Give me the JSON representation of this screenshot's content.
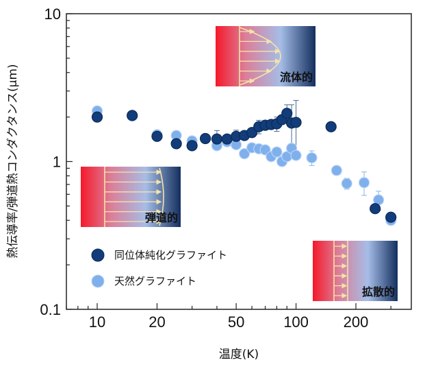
{
  "chart_data": {
    "type": "scatter",
    "xlabel": "温度(K)",
    "ylabel": "熱伝導率/弾道熱コンダクタンス(μm)",
    "xscale": "log",
    "yscale": "log",
    "xlim": [
      7,
      380
    ],
    "ylim": [
      0.1,
      10
    ],
    "xticks": [
      10,
      20,
      50,
      100,
      200
    ],
    "yticks": [
      0.1,
      1,
      10
    ],
    "xtick_labels": [
      "10",
      "20",
      "50",
      "100",
      "200"
    ],
    "ytick_labels": [
      "0.1",
      "1",
      "10"
    ],
    "legend_position": "lower-left",
    "series": [
      {
        "name": "同位体純化グラファイト",
        "color": "#123d7a",
        "points": [
          {
            "x": 10,
            "y": 2.0
          },
          {
            "x": 15,
            "y": 2.05
          },
          {
            "x": 20,
            "y": 1.48
          },
          {
            "x": 25,
            "y": 1.32
          },
          {
            "x": 30,
            "y": 1.28
          },
          {
            "x": 35,
            "y": 1.43
          },
          {
            "x": 40,
            "y": 1.42,
            "err": 0.2
          },
          {
            "x": 45,
            "y": 1.42
          },
          {
            "x": 50,
            "y": 1.48,
            "err": 0.15
          },
          {
            "x": 55,
            "y": 1.5
          },
          {
            "x": 60,
            "y": 1.57
          },
          {
            "x": 65,
            "y": 1.72,
            "err": 0.18
          },
          {
            "x": 70,
            "y": 1.76
          },
          {
            "x": 75,
            "y": 1.78
          },
          {
            "x": 80,
            "y": 1.8,
            "err": 0.2
          },
          {
            "x": 85,
            "y": 1.92
          },
          {
            "x": 90,
            "y": 2.12,
            "err": 0.3
          },
          {
            "x": 95,
            "y": 1.82,
            "err": 0.6
          },
          {
            "x": 100,
            "y": 1.84,
            "err": 0.75
          },
          {
            "x": 150,
            "y": 1.72
          },
          {
            "x": 250,
            "y": 0.48
          },
          {
            "x": 300,
            "y": 0.42
          }
        ]
      },
      {
        "name": "天然グラファイト",
        "color": "#7fb0ec",
        "points": [
          {
            "x": 10,
            "y": 2.2
          },
          {
            "x": 15,
            "y": 2.03
          },
          {
            "x": 20,
            "y": 1.52
          },
          {
            "x": 25,
            "y": 1.5
          },
          {
            "x": 30,
            "y": 1.38
          },
          {
            "x": 40,
            "y": 1.28
          },
          {
            "x": 45,
            "y": 1.36
          },
          {
            "x": 50,
            "y": 1.3
          },
          {
            "x": 55,
            "y": 1.13
          },
          {
            "x": 60,
            "y": 1.24
          },
          {
            "x": 65,
            "y": 1.22
          },
          {
            "x": 70,
            "y": 1.2
          },
          {
            "x": 75,
            "y": 1.08
          },
          {
            "x": 80,
            "y": 1.16
          },
          {
            "x": 85,
            "y": 1.0
          },
          {
            "x": 90,
            "y": 1.08
          },
          {
            "x": 95,
            "y": 1.23
          },
          {
            "x": 100,
            "y": 1.1
          },
          {
            "x": 120,
            "y": 1.06,
            "err": 0.12
          },
          {
            "x": 160,
            "y": 0.87
          },
          {
            "x": 180,
            "y": 0.71,
            "err": 0.06
          },
          {
            "x": 220,
            "y": 0.72,
            "err": 0.13
          },
          {
            "x": 260,
            "y": 0.55,
            "err": 0.08
          },
          {
            "x": 300,
            "y": 0.4
          }
        ]
      }
    ],
    "insets": [
      {
        "label": "流体的",
        "profile": "parabolic"
      },
      {
        "label": "弾道的",
        "profile": "flat"
      },
      {
        "label": "拡散的",
        "profile": "flat"
      }
    ]
  }
}
